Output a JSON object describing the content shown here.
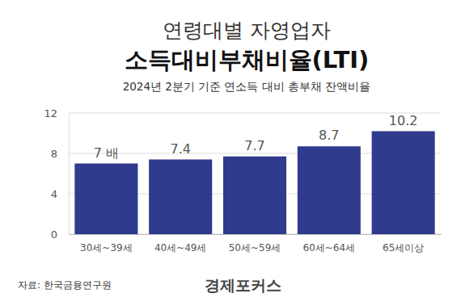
{
  "chart_data": {
    "type": "bar",
    "title": [
      "연령대별 자영업자",
      "소득대비부채비율(LTI)"
    ],
    "subtitle": "2024년 2분기 기준 연소득 대비 총부채 잔액비율",
    "categories": [
      "30세~39세",
      "40세~49세",
      "50세~59세",
      "60세~64세",
      "65세이상"
    ],
    "values": [
      7,
      7.4,
      7.7,
      8.7,
      10.2
    ],
    "value_labels": [
      "7 배",
      "7.4",
      "7.7",
      "8.7",
      "10.2"
    ],
    "data_labels": true,
    "color": "#2f3b8c",
    "ylim": [
      0,
      12
    ],
    "yticks": [
      0,
      4,
      8,
      12
    ],
    "grid": true,
    "source": "자료: 한국금융연구원",
    "credit": "경제포커스"
  }
}
